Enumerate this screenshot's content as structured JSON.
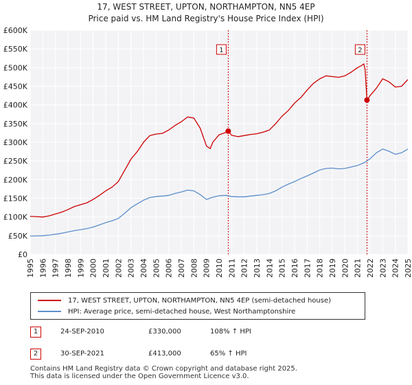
{
  "title_line1": "17, WEST STREET, UPTON, NORTHAMPTON, NN5 4EP",
  "title_line2": "Price paid vs. HM Land Registry's House Price Index (HPI)",
  "chart_data": {
    "type": "line",
    "xlim": [
      1995,
      2025
    ],
    "ylim": [
      0,
      600000
    ],
    "yticks": [
      0,
      50000,
      100000,
      150000,
      200000,
      250000,
      300000,
      350000,
      400000,
      450000,
      500000,
      550000,
      600000
    ],
    "ytick_labels": [
      "£0",
      "£50K",
      "£100K",
      "£150K",
      "£200K",
      "£250K",
      "£300K",
      "£350K",
      "£400K",
      "£450K",
      "£500K",
      "£550K",
      "£600K"
    ],
    "xticks": [
      1995,
      1996,
      1997,
      1998,
      1999,
      2000,
      2001,
      2002,
      2003,
      2004,
      2005,
      2006,
      2007,
      2008,
      2009,
      2010,
      2011,
      2012,
      2013,
      2014,
      2015,
      2016,
      2017,
      2018,
      2019,
      2020,
      2021,
      2022,
      2023,
      2024,
      2025
    ],
    "grid": true,
    "series": [
      {
        "name": "17, WEST STREET, UPTON, NORTHAMPTON, NN5 4EP (semi-detached house)",
        "color": "#cc0000",
        "x": [
          1995.0,
          1995.5,
          1996.0,
          1996.5,
          1997.0,
          1997.5,
          1998.0,
          1998.5,
          1999.0,
          1999.5,
          2000.0,
          2000.5,
          2001.0,
          2001.5,
          2002.0,
          2002.5,
          2003.0,
          2003.5,
          2004.0,
          2004.5,
          2005.0,
          2005.5,
          2006.0,
          2006.5,
          2007.0,
          2007.5,
          2008.0,
          2008.5,
          2009.0,
          2009.3,
          2009.5,
          2010.0,
          2010.5,
          2010.73,
          2011.0,
          2011.5,
          2012.0,
          2012.5,
          2013.0,
          2013.5,
          2014.0,
          2014.5,
          2015.0,
          2015.5,
          2016.0,
          2016.5,
          2017.0,
          2017.5,
          2018.0,
          2018.5,
          2019.0,
          2019.5,
          2020.0,
          2020.5,
          2021.0,
          2021.3,
          2021.5,
          2021.6,
          2021.75,
          2022.0,
          2022.5,
          2023.0,
          2023.5,
          2024.0,
          2024.5,
          2025.0
        ],
        "values": [
          102000,
          101000,
          100000,
          103000,
          108000,
          113000,
          120000,
          128000,
          133000,
          138000,
          147000,
          158000,
          170000,
          180000,
          195000,
          225000,
          255000,
          275000,
          300000,
          318000,
          322000,
          324000,
          333000,
          345000,
          355000,
          368000,
          365000,
          338000,
          290000,
          283000,
          300000,
          320000,
          326000,
          330000,
          319000,
          315000,
          318000,
          321000,
          323000,
          327000,
          333000,
          350000,
          370000,
          385000,
          405000,
          420000,
          440000,
          458000,
          470000,
          478000,
          476000,
          474000,
          478000,
          488000,
          500000,
          505000,
          510000,
          495000,
          413000,
          425000,
          445000,
          470000,
          462000,
          448000,
          450000,
          468000
        ]
      },
      {
        "name": "HPI: Average price, semi-detached house, West Northamptonshire",
        "color": "#5b8ec9",
        "x": [
          1995.0,
          1995.5,
          1996.0,
          1996.5,
          1997.0,
          1997.5,
          1998.0,
          1998.5,
          1999.0,
          1999.5,
          2000.0,
          2000.5,
          2001.0,
          2001.5,
          2002.0,
          2002.5,
          2003.0,
          2003.5,
          2004.0,
          2004.5,
          2005.0,
          2005.5,
          2006.0,
          2006.5,
          2007.0,
          2007.5,
          2008.0,
          2008.5,
          2009.0,
          2009.5,
          2010.0,
          2010.5,
          2011.0,
          2011.5,
          2012.0,
          2012.5,
          2013.0,
          2013.5,
          2014.0,
          2014.5,
          2015.0,
          2015.5,
          2016.0,
          2016.5,
          2017.0,
          2017.5,
          2018.0,
          2018.5,
          2019.0,
          2019.5,
          2020.0,
          2020.5,
          2021.0,
          2021.5,
          2022.0,
          2022.5,
          2023.0,
          2023.5,
          2024.0,
          2024.5,
          2025.0
        ],
        "values": [
          49000,
          49500,
          50000,
          51500,
          54000,
          56500,
          60000,
          63500,
          66000,
          69000,
          73000,
          79000,
          85000,
          90000,
          96000,
          110000,
          125000,
          135000,
          145000,
          152000,
          155000,
          156000,
          158000,
          163000,
          167000,
          172000,
          170000,
          160000,
          147000,
          153000,
          157000,
          158000,
          155000,
          154000,
          154000,
          156000,
          158000,
          160000,
          163000,
          170000,
          180000,
          188000,
          195000,
          203000,
          210000,
          218000,
          226000,
          230000,
          231000,
          229000,
          230000,
          234000,
          238000,
          245000,
          256000,
          272000,
          282000,
          276000,
          268000,
          272000,
          282000
        ]
      }
    ],
    "sales": [
      {
        "label": "1",
        "x": 2010.73,
        "value": 330000
      },
      {
        "label": "2",
        "x": 2021.75,
        "value": 413000
      }
    ]
  },
  "legend": {
    "item1": "17, WEST STREET, UPTON, NORTHAMPTON, NN5 4EP (semi-detached house)",
    "item2": "HPI: Average price, semi-detached house, West Northamptonshire"
  },
  "transactions": [
    {
      "label": "1",
      "date": "24-SEP-2010",
      "price": "£330,000",
      "hpi": "108% ↑ HPI"
    },
    {
      "label": "2",
      "date": "30-SEP-2021",
      "price": "£413,000",
      "hpi": "65% ↑ HPI"
    }
  ],
  "footer": {
    "line1": "Contains HM Land Registry data © Crown copyright and database right 2025.",
    "line2": "This data is licensed under the Open Government Licence v3.0."
  }
}
